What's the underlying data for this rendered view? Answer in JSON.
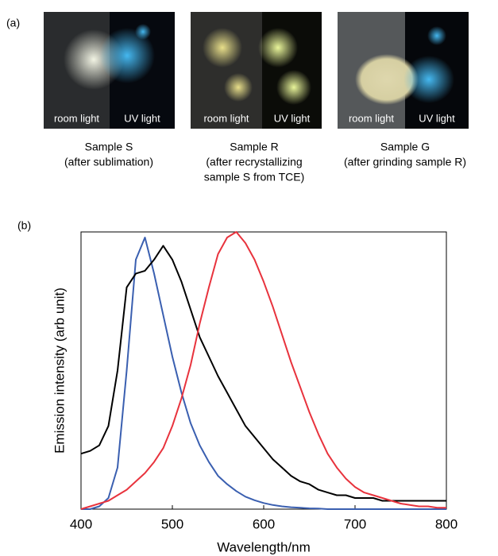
{
  "figure": {
    "panel_a_label": "(a)",
    "panel_b_label": "(b)",
    "photos": [
      {
        "left_label": "room light",
        "right_label": "UV light",
        "caption": [
          "Sample S",
          "(after sublimation)"
        ]
      },
      {
        "left_label": "room light",
        "right_label": "UV light",
        "caption": [
          "Sample R",
          "(after recrystallizing",
          "sample S from TCE)"
        ]
      },
      {
        "left_label": "room light",
        "right_label": "UV light",
        "caption": [
          "Sample G",
          "(after grinding sample R)"
        ]
      }
    ]
  },
  "chart_data": {
    "type": "line",
    "x_label": "Wavelength/nm",
    "y_label": "Emission intensity (arb unit)",
    "x": [
      400,
      410,
      420,
      430,
      440,
      450,
      460,
      470,
      480,
      490,
      500,
      510,
      520,
      530,
      540,
      550,
      560,
      570,
      580,
      590,
      600,
      610,
      620,
      630,
      640,
      650,
      660,
      670,
      680,
      690,
      700,
      710,
      720,
      730,
      740,
      750,
      760,
      770,
      780,
      790,
      800
    ],
    "xlim": [
      400,
      800
    ],
    "xticks": [
      400,
      500,
      600,
      700,
      800
    ],
    "ylim": [
      0,
      1
    ],
    "series": [
      {
        "color": "#3a5fb0",
        "values": [
          0,
          0,
          0.01,
          0.04,
          0.15,
          0.5,
          0.9,
          0.98,
          0.85,
          0.7,
          0.55,
          0.42,
          0.31,
          0.23,
          0.17,
          0.12,
          0.09,
          0.065,
          0.045,
          0.032,
          0.022,
          0.015,
          0.01,
          0.007,
          0.005,
          0.003,
          0.002,
          0,
          0,
          0,
          0,
          0,
          0,
          0,
          0,
          0,
          0,
          0,
          0,
          0,
          0
        ]
      },
      {
        "color": "#000000",
        "values": [
          0.2,
          0.21,
          0.23,
          0.3,
          0.5,
          0.8,
          0.85,
          0.86,
          0.9,
          0.95,
          0.9,
          0.82,
          0.72,
          0.62,
          0.55,
          0.48,
          0.42,
          0.36,
          0.3,
          0.26,
          0.22,
          0.18,
          0.15,
          0.12,
          0.1,
          0.09,
          0.07,
          0.06,
          0.05,
          0.05,
          0.04,
          0.04,
          0.04,
          0.03,
          0.03,
          0.03,
          0.03,
          0.03,
          0.03,
          0.03,
          0.03
        ]
      },
      {
        "color": "#e8333d",
        "values": [
          0,
          0.01,
          0.02,
          0.03,
          0.05,
          0.07,
          0.1,
          0.13,
          0.17,
          0.22,
          0.3,
          0.4,
          0.52,
          0.67,
          0.8,
          0.92,
          0.98,
          1.0,
          0.96,
          0.9,
          0.82,
          0.73,
          0.63,
          0.53,
          0.44,
          0.35,
          0.27,
          0.2,
          0.15,
          0.11,
          0.08,
          0.06,
          0.05,
          0.04,
          0.03,
          0.02,
          0.015,
          0.01,
          0.01,
          0.005,
          0.005
        ]
      }
    ]
  }
}
